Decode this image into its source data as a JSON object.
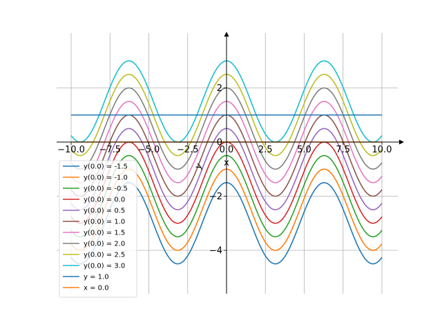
{
  "chart_data": {
    "type": "line",
    "title": "",
    "xlabel": "x",
    "ylabel": "y",
    "xlim": [
      -10.5,
      11.5
    ],
    "ylim": [
      -5.5,
      4.0
    ],
    "grid": true,
    "legend_position": "lower-left",
    "x_ticks": [
      -10.0,
      -7.5,
      -5.0,
      -2.5,
      0.0,
      2.5,
      5.0,
      7.5,
      10.0
    ],
    "x_tick_labels": [
      "−10.0",
      "−7.5",
      "−5.0",
      "−2.5",
      "0.0",
      "2.5",
      "5.0",
      "7.5",
      "10.0"
    ],
    "y_ticks": [
      -4,
      -2,
      0,
      2
    ],
    "y_tick_labels": [
      "−4",
      "−2",
      "0",
      "2"
    ],
    "x_range": [
      -10,
      10
    ],
    "series": [
      {
        "name": "y(0.0) = -1.5",
        "color": "#1f77b4",
        "x0": 0.0,
        "y0": -1.5,
        "amplitude": 1.5,
        "center": -3.0,
        "period": 6.283
      },
      {
        "name": "y(0.0) = -1.0",
        "color": "#ff7f0e",
        "x0": 0.0,
        "y0": -1.0,
        "amplitude": 1.5,
        "center": -2.5,
        "period": 6.283
      },
      {
        "name": "y(0.0) = -0.5",
        "color": "#2ca02c",
        "x0": 0.0,
        "y0": -0.5,
        "amplitude": 1.5,
        "center": -2.0,
        "period": 6.283
      },
      {
        "name": "y(0.0) = 0.0",
        "color": "#d62728",
        "x0": 0.0,
        "y0": 0.0,
        "amplitude": 1.5,
        "center": -1.5,
        "period": 6.283
      },
      {
        "name": "y(0.0) = 0.5",
        "color": "#9467bd",
        "x0": 0.0,
        "y0": 0.5,
        "amplitude": 1.5,
        "center": -1.0,
        "period": 6.283
      },
      {
        "name": "y(0.0) = 1.0",
        "color": "#8c564b",
        "x0": 0.0,
        "y0": 1.0,
        "amplitude": 1.5,
        "center": -0.5,
        "period": 6.283
      },
      {
        "name": "y(0.0) = 1.5",
        "color": "#e377c2",
        "x0": 0.0,
        "y0": 1.5,
        "amplitude": 1.5,
        "center": 0.0,
        "period": 6.283
      },
      {
        "name": "y(0.0) = 2.0",
        "color": "#7f7f7f",
        "x0": 0.0,
        "y0": 2.0,
        "amplitude": 1.5,
        "center": 0.5,
        "period": 6.283
      },
      {
        "name": "y(0.0) = 2.5",
        "color": "#bcbd22",
        "x0": 0.0,
        "y0": 2.5,
        "amplitude": 1.5,
        "center": 1.0,
        "period": 6.283
      },
      {
        "name": "y(0.0) = 3.0",
        "color": "#17becf",
        "x0": 0.0,
        "y0": 3.0,
        "amplitude": 1.5,
        "center": 1.5,
        "period": 6.283
      }
    ],
    "hline": {
      "name": "y = 1.0",
      "color": "#1f77b4",
      "y": 1.0
    },
    "vline": {
      "name": "x = 0.0",
      "color": "#ff7f0e",
      "x": 0.0
    }
  }
}
